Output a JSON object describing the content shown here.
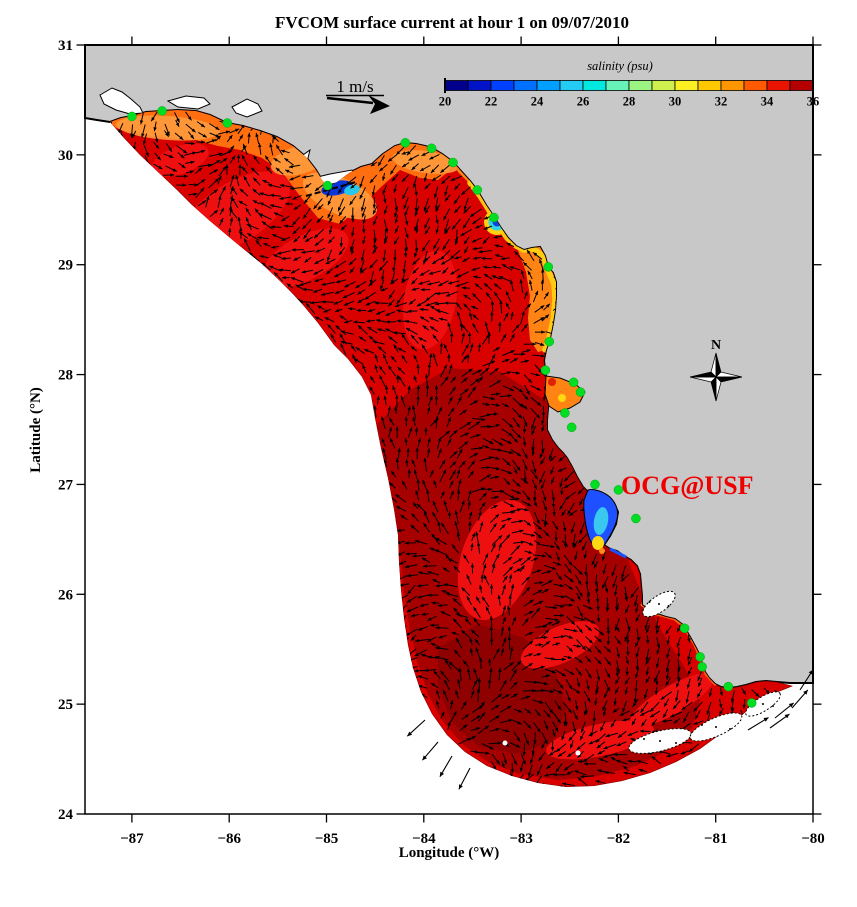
{
  "figure": {
    "title": "FVCOM surface current at hour 1 on 09/07/2010"
  },
  "axes": {
    "xlabel": "Longitude (°W)",
    "ylabel": "Latitude (°N)",
    "x_tick_values": [
      -87,
      -86,
      -85,
      -84,
      -83,
      -82,
      -81,
      -80
    ],
    "x_tick_labels": [
      "−87",
      "−86",
      "−85",
      "−84",
      "−83",
      "−82",
      "−81",
      "−80"
    ],
    "y_tick_values": [
      24,
      25,
      26,
      27,
      28,
      29,
      30,
      31
    ],
    "y_tick_labels": [
      "24",
      "25",
      "26",
      "27",
      "28",
      "29",
      "30",
      "31"
    ],
    "xlim": [
      -87.5,
      -80
    ],
    "ylim": [
      24,
      31
    ]
  },
  "colorbar": {
    "title": "salinity (psu)",
    "tick_labels": [
      "20",
      "22",
      "24",
      "26",
      "28",
      "30",
      "32",
      "34",
      "36"
    ],
    "range": [
      20,
      36
    ],
    "n_segments": 16,
    "colors": [
      "#00008c",
      "#0013c6",
      "#0041ff",
      "#0070ff",
      "#00a0ff",
      "#22ccf5",
      "#00e8e0",
      "#66f2b8",
      "#9cf582",
      "#cfef4e",
      "#fdf022",
      "#ffc800",
      "#ff9600",
      "#ff5a00",
      "#e81400",
      "#b40000"
    ]
  },
  "scale_arrow": {
    "label": "1 m/s"
  },
  "compass": {
    "label": "N"
  },
  "credit": {
    "label": "OCG@USF",
    "color": "#ee0000"
  },
  "map_colors": {
    "land": "#c8c8c8",
    "sea": "#ffffff",
    "shelf_base": "#d90000",
    "shelf_bright": "#ee1010",
    "shelf_dark": "#a60000",
    "shelf_darker": "#8f0000",
    "coastal_orange": "#ff6f10",
    "coastal_orange_light": "#ff9a3c",
    "bigbend_orange": "#ff8414",
    "plume_yellow": "#ffd012",
    "plume_cyan": "#2fd3e3",
    "plume_blue": "#1040e8",
    "bay_blue": "#1e50ff",
    "bay_cyan": "#38c8f0",
    "station_green": "#00dd22",
    "vector_black": "#000000",
    "coast_black": "#000000"
  },
  "chart_data": {
    "type": "heatmap",
    "subtype": "coastal-ocean-model-salinity-map-with-current-vector-field",
    "title": "FVCOM surface current at hour 1 on 09/07/2010",
    "xlabel": "Longitude (°W)",
    "ylabel": "Latitude (°N)",
    "xlim": [
      -87.5,
      -80
    ],
    "ylim": [
      24,
      31
    ],
    "grid": false,
    "colorbar": {
      "label": "salinity (psu)",
      "range": [
        20,
        36
      ],
      "tick_step": 2,
      "n_segments": 16,
      "colormap": "jet"
    },
    "vector_field": {
      "kind": "surface current arrows (black)",
      "reference_vector": "1 m/s"
    },
    "field_summary": [
      {
        "region": "open West Florida Shelf (model interior)",
        "approx_salinity_psu": "35-36"
      },
      {
        "region": "southern / offshore shelf (darkest red)",
        "approx_salinity_psu": "36"
      },
      {
        "region": "panhandle coastal band",
        "approx_salinity_psu": "32-34"
      },
      {
        "region": "Big Bend nearshore band",
        "approx_salinity_psu": "29-33"
      },
      {
        "region": "Apalachicola Bay plume",
        "approx_salinity_psu": "20-27"
      },
      {
        "region": "Suwannee River plume",
        "approx_salinity_psu": "22-30"
      },
      {
        "region": "Tampa Bay",
        "approx_salinity_psu": "20-28"
      }
    ],
    "station_markers": {
      "marker": "green dot",
      "lonlat": [
        [
          -87.0,
          30.35
        ],
        [
          -86.69,
          30.4
        ],
        [
          -86.02,
          30.29
        ],
        [
          -84.99,
          29.72
        ],
        [
          -84.19,
          30.11
        ],
        [
          -83.92,
          30.06
        ],
        [
          -83.7,
          29.93
        ],
        [
          -83.45,
          29.68
        ],
        [
          -83.28,
          29.43
        ],
        [
          -82.72,
          28.98
        ],
        [
          -82.71,
          28.3
        ],
        [
          -82.75,
          28.04
        ],
        [
          -82.46,
          27.93
        ],
        [
          -82.39,
          27.84
        ],
        [
          -82.55,
          27.65
        ],
        [
          -82.48,
          27.52
        ],
        [
          -82.24,
          27.0
        ],
        [
          -82.0,
          26.95
        ],
        [
          -81.82,
          26.69
        ],
        [
          -81.32,
          25.69
        ],
        [
          -81.16,
          25.43
        ],
        [
          -81.14,
          25.34
        ],
        [
          -80.87,
          25.16
        ],
        [
          -80.63,
          25.01
        ]
      ]
    },
    "annotations": [
      "OCG@USF",
      "N",
      "1 m/s"
    ]
  }
}
